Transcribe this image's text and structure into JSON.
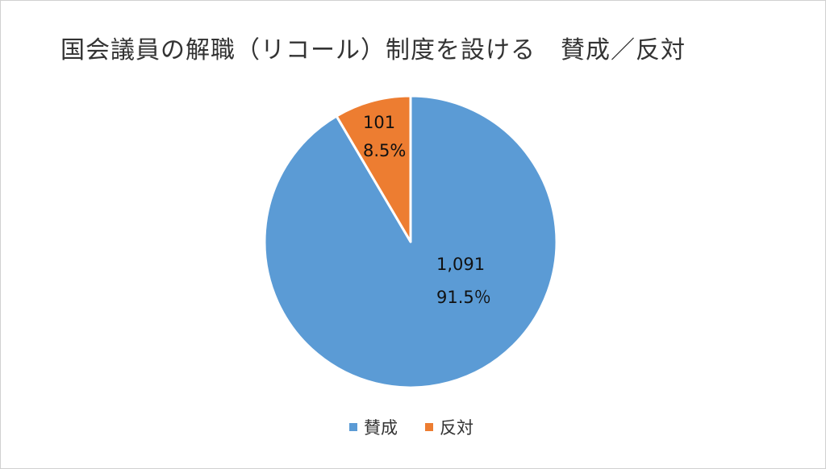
{
  "chart_data": {
    "type": "pie",
    "title": "国会議員の解職（リコール）制度を設ける　賛成／反対",
    "categories": [
      "賛成",
      "反対"
    ],
    "values": [
      1091,
      101
    ],
    "value_labels": [
      "1,091",
      "101"
    ],
    "percent_labels": [
      "91.5％",
      "8.5%"
    ],
    "colors": [
      "#5b9bd5",
      "#ed7d31"
    ],
    "legend_position": "bottom"
  }
}
